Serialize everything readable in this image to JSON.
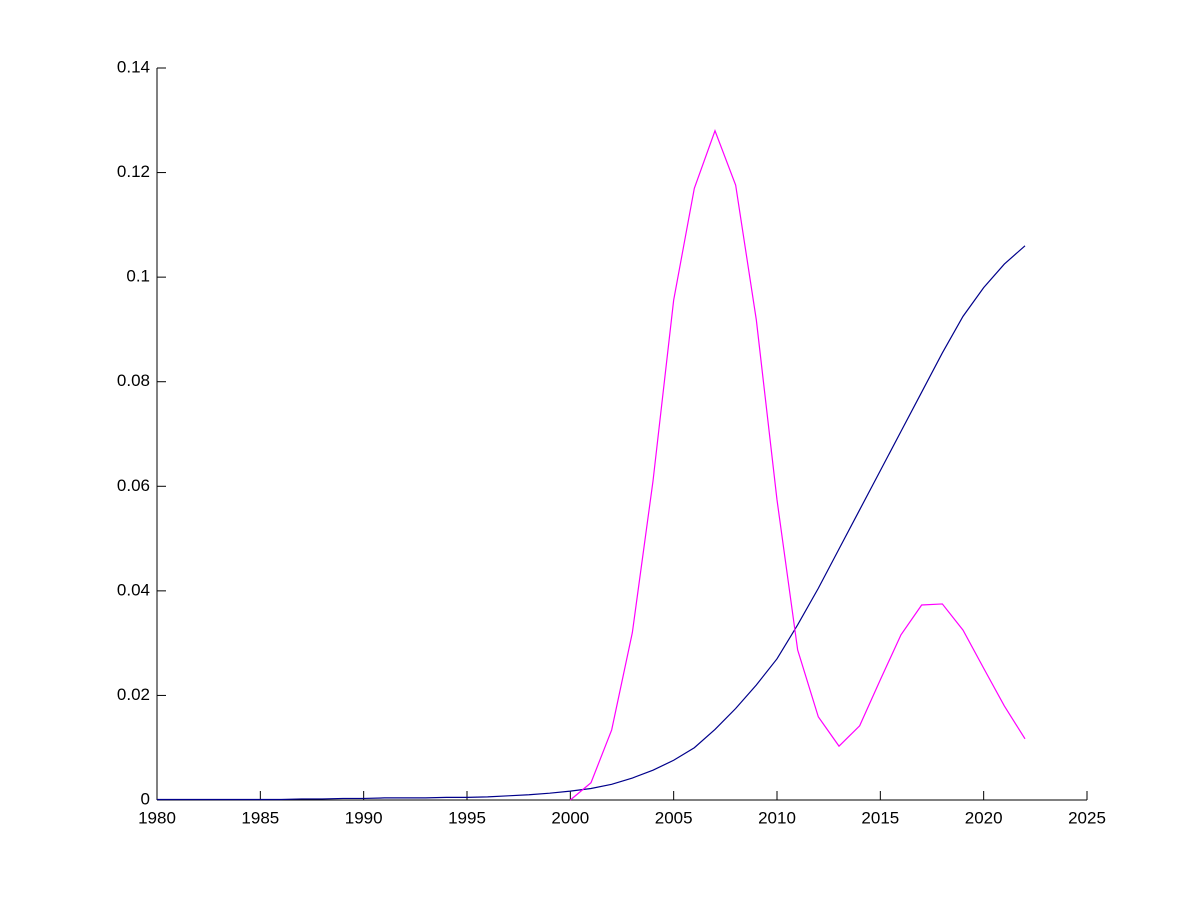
{
  "chart_data": {
    "type": "line",
    "x": [
      1980,
      1981,
      1982,
      1983,
      1984,
      1985,
      1986,
      1987,
      1988,
      1989,
      1990,
      1991,
      1992,
      1993,
      1994,
      1995,
      1996,
      1997,
      1998,
      1999,
      2000,
      2001,
      2002,
      2003,
      2004,
      2005,
      2006,
      2007,
      2008,
      2009,
      2010,
      2011,
      2012,
      2013,
      2014,
      2015,
      2016,
      2017,
      2018,
      2019,
      2020,
      2021,
      2022
    ],
    "series": [
      {
        "color": "#00008b",
        "values": [
          0.0001,
          0.0001,
          0.0001,
          0.0001,
          0.0001,
          0.0001,
          0.0001,
          0.0002,
          0.0002,
          0.0003,
          0.0003,
          0.0004,
          0.0004,
          0.0004,
          0.0005,
          0.0005,
          0.0006,
          0.0008,
          0.001,
          0.0013,
          0.0017,
          0.0022,
          0.003,
          0.0042,
          0.0057,
          0.0076,
          0.01,
          0.0135,
          0.0175,
          0.022,
          0.027,
          0.0335,
          0.0405,
          0.048,
          0.0555,
          0.063,
          0.0705,
          0.078,
          0.0855,
          0.0925,
          0.098,
          0.1025,
          0.106
        ]
      },
      {
        "color": "#ff00ff",
        "values": [
          null,
          null,
          null,
          null,
          null,
          null,
          null,
          null,
          null,
          null,
          null,
          null,
          null,
          null,
          null,
          null,
          null,
          null,
          null,
          null,
          0,
          0.0033,
          0.0134,
          0.032,
          0.061,
          0.0956,
          0.117,
          0.128,
          0.1176,
          0.0918,
          0.0574,
          0.0287,
          0.0159,
          0.0103,
          0.0142,
          0.023,
          0.0316,
          0.0373,
          0.0375,
          0.0325,
          0.0252,
          0.018,
          0.0117
        ]
      }
    ],
    "xlim": [
      1980,
      2025
    ],
    "xticks": [
      1980,
      1985,
      1990,
      1995,
      2000,
      2005,
      2010,
      2015,
      2020,
      2025
    ],
    "ylim": [
      0,
      0.14
    ],
    "yticks": [
      0,
      0.02,
      0.04,
      0.06,
      0.08,
      0.1,
      0.12,
      0.14
    ]
  }
}
